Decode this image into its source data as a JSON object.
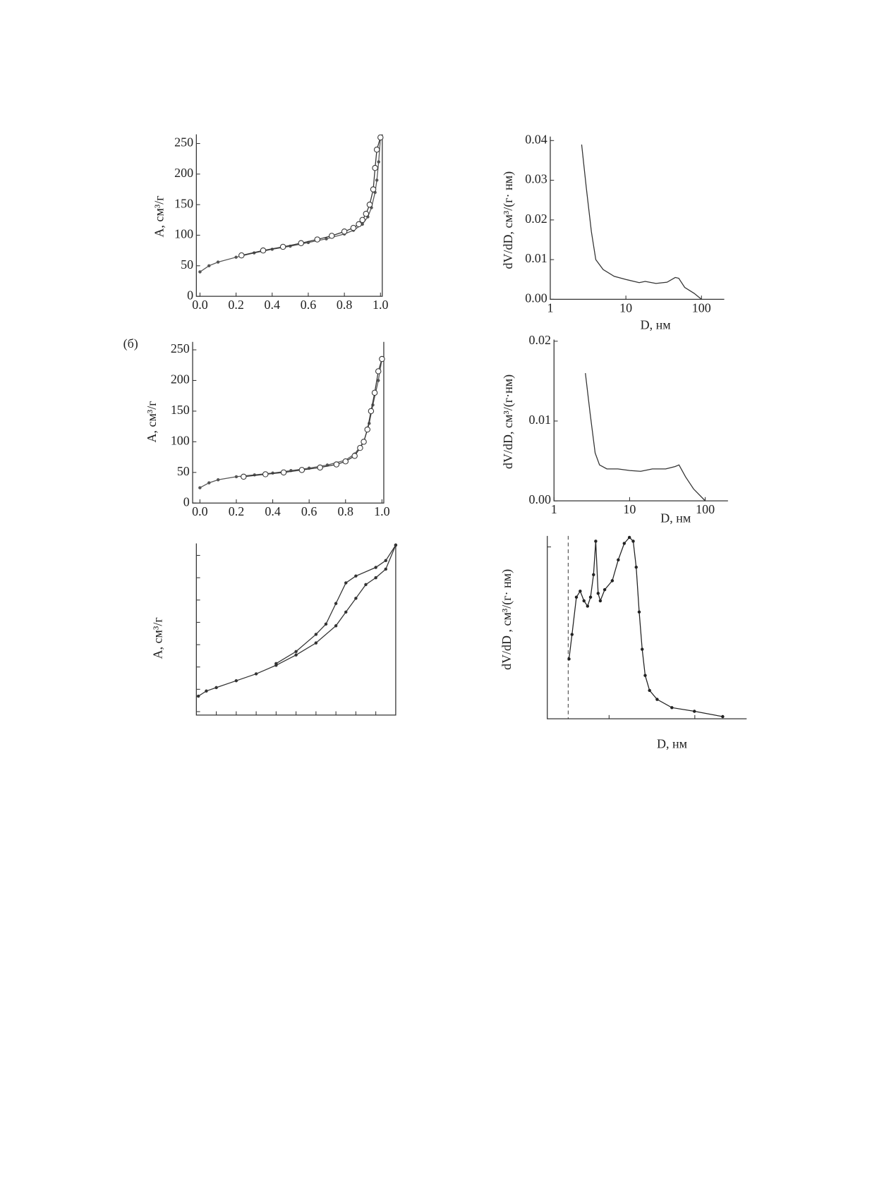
{
  "chart_data": [
    {
      "type": "line",
      "ylabel": "A, см³/г",
      "xlim": [
        -0.02,
        1.01
      ],
      "ylim": [
        0,
        265
      ],
      "xticks": [
        {
          "value": 0,
          "label": "0.0"
        },
        0.2,
        0.4,
        0.6,
        0.8,
        {
          "value": 1,
          "label": "1.0"
        }
      ],
      "yticks": [
        0,
        50,
        100,
        150,
        200,
        250
      ],
      "series": [
        {
          "color": "#555",
          "marker": "dot",
          "x": [
            0,
            0.05,
            0.1,
            0.2,
            0.3,
            0.4,
            0.5,
            0.6,
            0.7,
            0.8,
            0.85,
            0.9,
            0.93,
            0.95,
            0.97,
            0.98,
            0.99,
            1.0
          ],
          "values": [
            40,
            50,
            56,
            64,
            71,
            77,
            82,
            88,
            94,
            102,
            108,
            118,
            130,
            145,
            170,
            190,
            220,
            260
          ]
        },
        {
          "color": "#333",
          "marker": "circle",
          "x": [
            0.23,
            0.35,
            0.46,
            0.56,
            0.65,
            0.73,
            0.8,
            0.85,
            0.88,
            0.9,
            0.92,
            0.94,
            0.96,
            0.97,
            0.98,
            1.0
          ],
          "values": [
            67,
            75,
            81,
            87,
            93,
            99,
            106,
            112,
            118,
            125,
            135,
            150,
            175,
            210,
            240,
            260
          ]
        }
      ]
    },
    {
      "type": "line",
      "ylabel": "dV/dD, см³/(г· нм)",
      "xlabel": "D, нм",
      "log_x": true,
      "xlim": [
        1,
        200
      ],
      "ylim": [
        0,
        0.041
      ],
      "xticks": [
        1,
        10,
        100
      ],
      "yticks": [
        {
          "value": 0,
          "label": "0.00"
        },
        0.01,
        0.02,
        0.03,
        0.04
      ],
      "series": [
        {
          "color": "#333",
          "marker": "none",
          "x": [
            2.6,
            3,
            3.5,
            4,
            5,
            7,
            10,
            15,
            18,
            25,
            35,
            45,
            50,
            60,
            80,
            100
          ],
          "values": [
            0.039,
            0.028,
            0.017,
            0.01,
            0.0075,
            0.0058,
            0.005,
            0.0042,
            0.0045,
            0.004,
            0.0043,
            0.0055,
            0.0053,
            0.003,
            0.0015,
            0
          ]
        }
      ]
    },
    {
      "type": "line",
      "ylabel": "A, см³/г",
      "label": "(б)",
      "xlim": [
        -0.04,
        1.01
      ],
      "ylim": [
        0,
        263
      ],
      "xticks": [
        {
          "value": 0,
          "label": "0.0"
        },
        0.2,
        0.4,
        0.6,
        0.8,
        {
          "value": 1,
          "label": "1.0"
        }
      ],
      "yticks": [
        0,
        50,
        100,
        150,
        200,
        250
      ],
      "series": [
        {
          "color": "#555",
          "marker": "dot",
          "x": [
            0,
            0.05,
            0.1,
            0.2,
            0.3,
            0.4,
            0.5,
            0.6,
            0.7,
            0.8,
            0.85,
            0.9,
            0.93,
            0.95,
            0.98,
            1.0
          ],
          "values": [
            25,
            33,
            38,
            43,
            46,
            49,
            53,
            57,
            62,
            70,
            80,
            100,
            130,
            160,
            200,
            235
          ]
        },
        {
          "color": "#333",
          "marker": "circle",
          "x": [
            0.24,
            0.36,
            0.46,
            0.56,
            0.66,
            0.75,
            0.8,
            0.85,
            0.88,
            0.9,
            0.92,
            0.94,
            0.96,
            0.98,
            1.0
          ],
          "values": [
            43,
            47,
            50,
            54,
            58,
            63,
            68,
            77,
            90,
            100,
            120,
            150,
            180,
            215,
            235
          ]
        }
      ]
    },
    {
      "type": "line",
      "ylabel": "dV/dD, см³/(г·нм)",
      "xlabel": "D, нм",
      "log_x": true,
      "xlim": [
        1,
        200
      ],
      "ylim": [
        0,
        0.0202
      ],
      "xticks": [
        1,
        10,
        100
      ],
      "yticks": [
        {
          "value": 0,
          "label": "0.00"
        },
        0.01,
        0.02
      ],
      "series": [
        {
          "color": "#333",
          "marker": "none",
          "x": [
            2.6,
            3,
            3.5,
            4,
            5,
            7,
            10,
            14,
            20,
            30,
            40,
            45,
            55,
            70,
            100
          ],
          "values": [
            0.016,
            0.011,
            0.006,
            0.0045,
            0.004,
            0.004,
            0.0038,
            0.0037,
            0.004,
            0.004,
            0.0043,
            0.0045,
            0.003,
            0.0015,
            0
          ]
        }
      ]
    },
    {
      "type": "line",
      "ylabel": "A, см³/г",
      "tick_labels": false,
      "xlim": [
        0,
        1
      ],
      "ylim": [
        0,
        1
      ],
      "xticks": [
        0.1,
        0.2,
        0.3,
        0.4,
        0.5,
        0.6,
        0.7,
        0.8,
        0.9
      ],
      "yticks": [
        0.02,
        0.15,
        0.28,
        0.41,
        0.54,
        0.67,
        0.8,
        0.93
      ],
      "series": [
        {
          "color": "#333",
          "marker": "dot",
          "x": [
            0.01,
            0.05,
            0.1,
            0.2,
            0.3,
            0.4,
            0.5,
            0.6,
            0.7,
            0.75,
            0.8,
            0.85,
            0.9,
            0.95,
            1.0
          ],
          "values": [
            0.11,
            0.14,
            0.16,
            0.2,
            0.24,
            0.29,
            0.35,
            0.42,
            0.52,
            0.6,
            0.68,
            0.76,
            0.8,
            0.85,
            0.99
          ]
        },
        {
          "color": "#333",
          "marker": "dot",
          "x": [
            0.4,
            0.5,
            0.6,
            0.65,
            0.7,
            0.75,
            0.8,
            0.9,
            0.95,
            1.0
          ],
          "values": [
            0.3,
            0.37,
            0.47,
            0.53,
            0.65,
            0.77,
            0.81,
            0.86,
            0.9,
            0.99
          ]
        }
      ]
    },
    {
      "type": "line",
      "ylabel": "dV/dD , см³/(г· нм)",
      "xlabel": "D, нм",
      "tick_labels": false,
      "xlim": [
        0,
        1
      ],
      "ylim": [
        0,
        1
      ],
      "xticks": [
        0.31,
        0.74
      ],
      "yticks": [
        0.94
      ],
      "series": [
        {
          "color": "#222",
          "marker": "dot",
          "x": [
            0.109,
            0.124,
            0.146,
            0.165,
            0.184,
            0.202,
            0.217,
            0.232,
            0.243,
            0.255,
            0.266,
            0.288,
            0.326,
            0.356,
            0.386,
            0.412,
            0.431,
            0.446,
            0.461,
            0.476,
            0.491,
            0.513,
            0.551,
            0.625,
            0.738,
            0.88
          ],
          "values": [
            0.327,
            0.461,
            0.665,
            0.698,
            0.645,
            0.616,
            0.665,
            0.788,
            0.971,
            0.686,
            0.645,
            0.706,
            0.755,
            0.869,
            0.959,
            0.992,
            0.971,
            0.829,
            0.584,
            0.38,
            0.237,
            0.155,
            0.106,
            0.061,
            0.041,
            0.012
          ]
        }
      ]
    }
  ]
}
